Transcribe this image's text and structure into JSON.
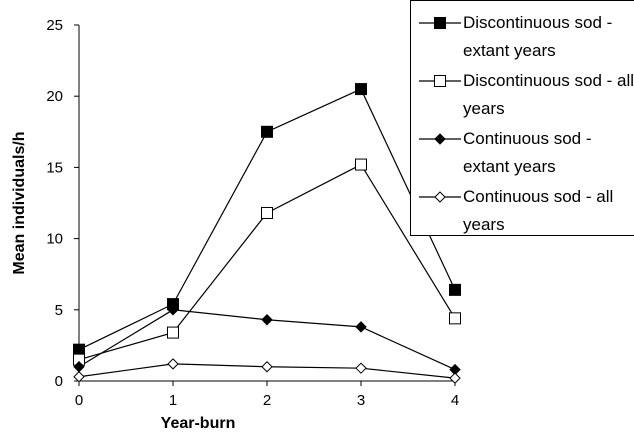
{
  "chart_data": {
    "type": "line",
    "x_label": "Year-burn",
    "y_label": "Mean individuals/h",
    "x": [
      0,
      1,
      2,
      3,
      4
    ],
    "xlim": [
      0,
      4
    ],
    "xticks": [
      0,
      1,
      2,
      3,
      4
    ],
    "ylim": [
      0,
      25
    ],
    "yticks": [
      0,
      5,
      10,
      15,
      20,
      25
    ],
    "series": [
      {
        "name": "Discontinuous sod - extant years",
        "color": "#000000",
        "marker": "square",
        "filled": true,
        "values": [
          2.2,
          5.4,
          17.5,
          20.5,
          6.4
        ]
      },
      {
        "name": "Discontinuous sod - all years",
        "color": "#000000",
        "marker": "square",
        "filled": false,
        "values": [
          1.5,
          3.4,
          11.8,
          15.2,
          4.4
        ]
      },
      {
        "name": "Continuous sod - extant years",
        "color": "#000000",
        "marker": "diamond",
        "filled": true,
        "values": [
          1.0,
          5.0,
          4.3,
          3.8,
          0.8
        ]
      },
      {
        "name": "Continuous sod - all years",
        "color": "#000000",
        "marker": "diamond",
        "filled": false,
        "values": [
          0.3,
          1.2,
          1.0,
          0.9,
          0.2
        ]
      }
    ]
  }
}
